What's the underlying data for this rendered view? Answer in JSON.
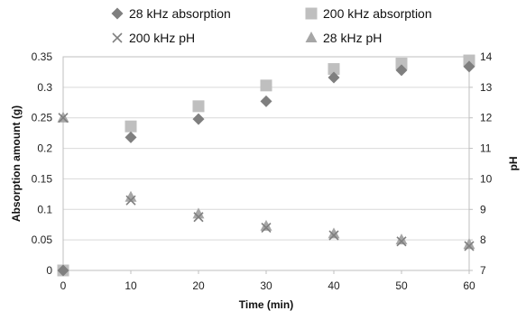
{
  "chart_data": {
    "type": "scatter",
    "xlabel": "Time (min)",
    "ylabel": "Absorption amount (g)",
    "y2label": "pH",
    "x_ticks": [
      0,
      10,
      20,
      30,
      40,
      50,
      60
    ],
    "xlim": [
      0,
      60
    ],
    "ylim": [
      0,
      0.35
    ],
    "y_ticks": [
      "0",
      "0.05",
      "0.1",
      "0.15",
      "0.2",
      "0.25",
      "0.3",
      "0.35"
    ],
    "y2lim": [
      7,
      14
    ],
    "y2_ticks": [
      "7",
      "8",
      "9",
      "10",
      "11",
      "12",
      "13",
      "14"
    ],
    "grid": "horizontal",
    "legend_position": "top",
    "series": [
      {
        "name": "28 kHz absorption",
        "axis": "left",
        "marker": "diamond",
        "color": "#7f7f7f",
        "x": [
          0,
          10,
          20,
          30,
          40,
          50,
          60
        ],
        "y": [
          0,
          0.218,
          0.248,
          0.277,
          0.316,
          0.328,
          0.334
        ]
      },
      {
        "name": "200 kHz absorption",
        "axis": "left",
        "marker": "square",
        "color": "#bfbfbf",
        "x": [
          0,
          10,
          20,
          30,
          40,
          50,
          60
        ],
        "y": [
          0,
          0.236,
          0.269,
          0.303,
          0.33,
          0.339,
          0.344
        ]
      },
      {
        "name": "200 kHz  pH",
        "axis": "right",
        "marker": "x",
        "color": "#7f7f7f",
        "x": [
          0,
          10,
          20,
          30,
          40,
          50,
          60
        ],
        "y": [
          12.0,
          9.3,
          8.75,
          8.4,
          8.15,
          7.95,
          7.8
        ]
      },
      {
        "name": "28 kHz  pH",
        "axis": "right",
        "marker": "triangle",
        "color": "#a6a6a6",
        "x": [
          0,
          10,
          20,
          30,
          40,
          50,
          60
        ],
        "y": [
          12.0,
          9.4,
          8.85,
          8.45,
          8.2,
          8.0,
          7.85
        ]
      }
    ]
  }
}
